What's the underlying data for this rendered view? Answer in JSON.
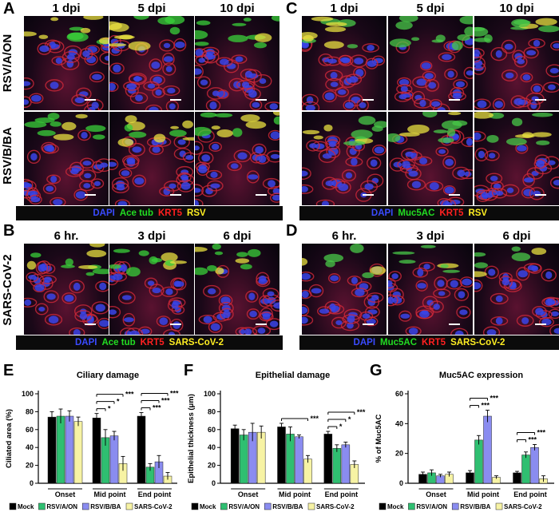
{
  "panels": {
    "A": {
      "label": "A",
      "times": [
        "1 dpi",
        "5 dpi",
        "10 dpi"
      ],
      "rows": [
        "RSV/A/ON",
        "RSV/B/BA"
      ],
      "legend": [
        {
          "text": "DAPI",
          "color": "#3a4bff"
        },
        {
          "text": "Ace tub",
          "color": "#22dd22"
        },
        {
          "text": "KRT5",
          "color": "#ff2020"
        },
        {
          "text": "RSV",
          "color": "#ffee22"
        }
      ]
    },
    "B": {
      "label": "B",
      "times": [
        "6 hr.",
        "3 dpi",
        "6 dpi"
      ],
      "rows": [
        "SARS-CoV-2"
      ],
      "legend": [
        {
          "text": "DAPI",
          "color": "#3a4bff"
        },
        {
          "text": "Ace tub",
          "color": "#22dd22"
        },
        {
          "text": "KRT5",
          "color": "#ff2020"
        },
        {
          "text": "SARS-CoV-2",
          "color": "#ffee22"
        }
      ]
    },
    "C": {
      "label": "C",
      "times": [
        "1 dpi",
        "5 dpi",
        "10 dpi"
      ],
      "legend": [
        {
          "text": "DAPI",
          "color": "#3a4bff"
        },
        {
          "text": "Muc5AC",
          "color": "#22dd22"
        },
        {
          "text": "KRT5",
          "color": "#ff2020"
        },
        {
          "text": "RSV",
          "color": "#ffee22"
        }
      ]
    },
    "D": {
      "label": "D",
      "times": [
        "6 hr.",
        "3 dpi",
        "6 dpi"
      ],
      "legend": [
        {
          "text": "DAPI",
          "color": "#3a4bff"
        },
        {
          "text": "Muc5AC",
          "color": "#22dd22"
        },
        {
          "text": "KRT5",
          "color": "#ff2020"
        },
        {
          "text": "SARS-CoV-2",
          "color": "#ffee22"
        }
      ]
    },
    "E": {
      "label": "E"
    },
    "F": {
      "label": "F"
    },
    "G": {
      "label": "G"
    }
  },
  "colors": {
    "Mock": "#000000",
    "RSV/A/ON": "#2fbf71",
    "RSV/B/BA": "#8a8cf0",
    "SARS-CoV-2": "#f7f3a4"
  },
  "chart_data": [
    {
      "type": "bar",
      "title": "Ciliary damage",
      "ylabel": "Ciliated area (%)",
      "ylim": [
        0,
        100
      ],
      "yticks": [
        0,
        20,
        40,
        60,
        80,
        100
      ],
      "categories": [
        "Onset",
        "Mid point",
        "End point"
      ],
      "series": [
        {
          "name": "Mock",
          "values": [
            74,
            73,
            75
          ],
          "errors": [
            6,
            5,
            4
          ]
        },
        {
          "name": "RSV/A/ON",
          "values": [
            75,
            51,
            18
          ],
          "errors": [
            8,
            9,
            4
          ]
        },
        {
          "name": "RSV/B/BA",
          "values": [
            75,
            53,
            24
          ],
          "errors": [
            6,
            5,
            7
          ]
        },
        {
          "name": "SARS-CoV-2",
          "values": [
            69,
            22,
            8
          ],
          "errors": [
            5,
            8,
            4
          ]
        }
      ],
      "significance": [
        {
          "group": "Mid point",
          "from": 0,
          "to": 1,
          "label": "*"
        },
        {
          "group": "Mid point",
          "from": 0,
          "to": 2,
          "label": "*"
        },
        {
          "group": "Mid point",
          "from": 0,
          "to": 3,
          "label": "***"
        },
        {
          "group": "End point",
          "from": 0,
          "to": 1,
          "label": "***"
        },
        {
          "group": "End point",
          "from": 0,
          "to": 2,
          "label": "***"
        },
        {
          "group": "End point",
          "from": 0,
          "to": 3,
          "label": "***"
        }
      ]
    },
    {
      "type": "bar",
      "title": "Epithelial damage",
      "ylabel": "Epithelial thickness (μm)",
      "ylim": [
        0,
        100
      ],
      "yticks": [
        0,
        20,
        40,
        60,
        80,
        100
      ],
      "categories": [
        "Onset",
        "Mid point",
        "End point"
      ],
      "series": [
        {
          "name": "Mock",
          "values": [
            61,
            63,
            55
          ],
          "errors": [
            4,
            4,
            3
          ]
        },
        {
          "name": "RSV/A/ON",
          "values": [
            54,
            55,
            39
          ],
          "errors": [
            6,
            8,
            4
          ]
        },
        {
          "name": "RSV/B/BA",
          "values": [
            57,
            52,
            43
          ],
          "errors": [
            10,
            2,
            3
          ]
        },
        {
          "name": "SARS-CoV-2",
          "values": [
            57,
            27,
            21
          ],
          "errors": [
            7,
            4,
            4
          ]
        }
      ],
      "significance": [
        {
          "group": "Mid point",
          "from": 0,
          "to": 3,
          "label": "***"
        },
        {
          "group": "End point",
          "from": 0,
          "to": 1,
          "label": "*"
        },
        {
          "group": "End point",
          "from": 0,
          "to": 2,
          "label": "*"
        },
        {
          "group": "End point",
          "from": 0,
          "to": 3,
          "label": "***"
        }
      ]
    },
    {
      "type": "bar",
      "title": "Muc5AC expression",
      "ylabel": "% of Muc5AC",
      "ylim": [
        0,
        60
      ],
      "yticks": [
        0,
        20,
        40,
        60
      ],
      "categories": [
        "Onset",
        "Mid point",
        "End point"
      ],
      "series": [
        {
          "name": "Mock",
          "values": [
            6,
            7,
            7
          ],
          "errors": [
            1.5,
            1.5,
            1
          ]
        },
        {
          "name": "RSV/A/ON",
          "values": [
            7,
            29,
            19
          ],
          "errors": [
            2,
            3,
            2
          ]
        },
        {
          "name": "RSV/B/BA",
          "values": [
            5,
            45,
            24
          ],
          "errors": [
            1,
            4,
            2
          ]
        },
        {
          "name": "SARS-CoV-2",
          "values": [
            6,
            4,
            3
          ],
          "errors": [
            1.5,
            1,
            2
          ]
        }
      ],
      "significance": [
        {
          "group": "Mid point",
          "from": 0,
          "to": 1,
          "label": "***"
        },
        {
          "group": "Mid point",
          "from": 0,
          "to": 2,
          "label": "***"
        },
        {
          "group": "End point",
          "from": 0,
          "to": 1,
          "label": "***"
        },
        {
          "group": "End point",
          "from": 0,
          "to": 2,
          "label": "***"
        }
      ]
    }
  ]
}
